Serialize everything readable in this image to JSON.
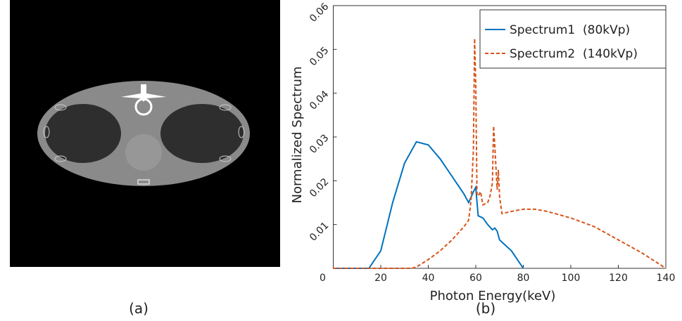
{
  "panel_a": {
    "caption": "(a)"
  },
  "chart_data": {
    "type": "line",
    "caption": "(b)",
    "x_label": "Photon Energy(keV)",
    "y_label": "Normalized Spectrum",
    "xlim": [
      0,
      140
    ],
    "ylim": [
      0,
      0.06
    ],
    "xticks": [
      0,
      20,
      40,
      60,
      80,
      100,
      120,
      140
    ],
    "yticks": [
      0.01,
      0.02,
      0.03,
      0.04,
      0.05,
      0.06
    ],
    "grid": false,
    "legend": "upper right",
    "series": [
      {
        "name": "Spectrum1  (80kVp)",
        "color": "#0072bd",
        "dash": "solid",
        "x": [
          0,
          15,
          20,
          25,
          30,
          35,
          40,
          45,
          50,
          55,
          57,
          59,
          60,
          61,
          63,
          65,
          67,
          68,
          69,
          70,
          72,
          75,
          80
        ],
        "values": [
          0,
          0,
          0.004,
          0.015,
          0.024,
          0.0289,
          0.0282,
          0.025,
          0.021,
          0.017,
          0.015,
          0.0175,
          0.0185,
          0.012,
          0.0115,
          0.01,
          0.0088,
          0.0092,
          0.0085,
          0.0065,
          0.0055,
          0.004,
          0
        ]
      },
      {
        "name": "Spectrum2  (140kVp)",
        "color": "#d95319",
        "dash": "dashed",
        "x": [
          0,
          33,
          35,
          40,
          45,
          50,
          55,
          57,
          58,
          59,
          59.5,
          60,
          60.5,
          61,
          62,
          63,
          65,
          66,
          67,
          67.5,
          68,
          69,
          69.5,
          70,
          71,
          75,
          80,
          85,
          90,
          100,
          110,
          120,
          130,
          140
        ],
        "values": [
          0,
          0,
          0.0003,
          0.002,
          0.004,
          0.0065,
          0.0095,
          0.011,
          0.0155,
          0.027,
          0.0525,
          0.042,
          0.017,
          0.0165,
          0.0175,
          0.0145,
          0.015,
          0.0165,
          0.0195,
          0.0325,
          0.028,
          0.018,
          0.0225,
          0.0165,
          0.0125,
          0.013,
          0.0135,
          0.0135,
          0.013,
          0.0115,
          0.0095,
          0.0065,
          0.0035,
          0
        ]
      }
    ]
  }
}
